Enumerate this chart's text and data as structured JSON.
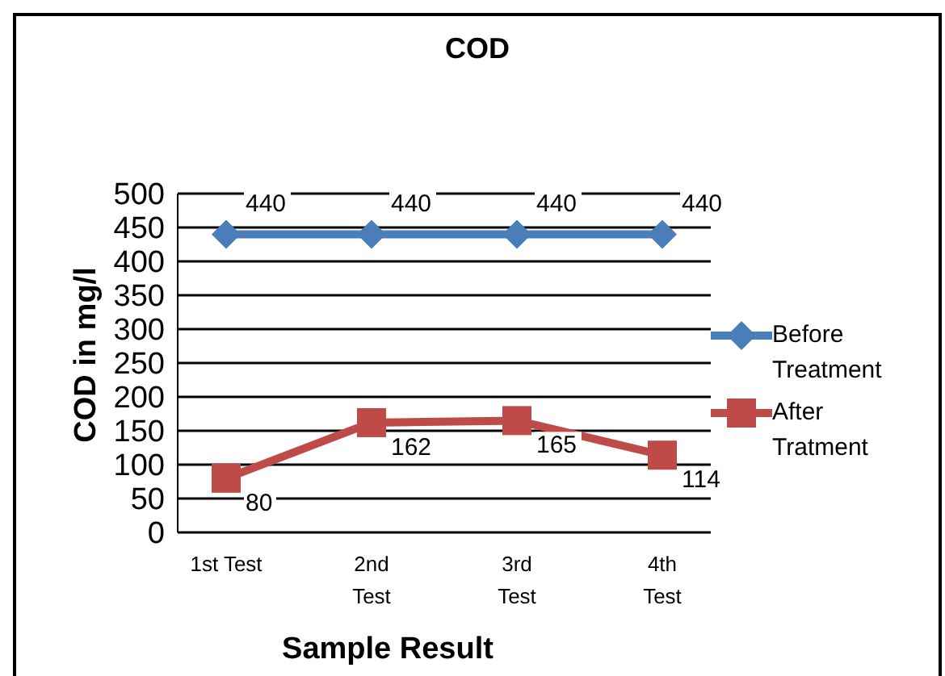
{
  "chart_data": {
    "type": "line",
    "title": "COD",
    "xlabel": "Sample Result",
    "ylabel": "COD in mg/l",
    "categories": [
      "1st Test",
      "2nd Test",
      "3rd Test",
      "4th Test"
    ],
    "series": [
      {
        "name": "Before Treatment",
        "color": "#4a7ebb",
        "values": [
          440,
          440,
          440,
          440
        ],
        "marker": "diamond"
      },
      {
        "name": "After Tratment",
        "color": "#be4b48",
        "values": [
          80,
          162,
          165,
          114
        ],
        "marker": "square"
      }
    ],
    "ylim": [
      0,
      500
    ],
    "yticks": [
      0,
      50,
      100,
      150,
      200,
      250,
      300,
      350,
      400,
      450,
      500
    ],
    "grid": "y",
    "legend": "right",
    "data_labels": true,
    "line_style": "solid"
  }
}
